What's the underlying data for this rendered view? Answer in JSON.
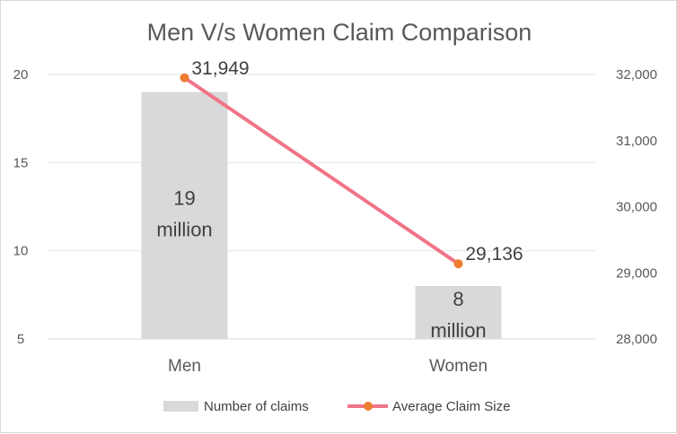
{
  "chart_data": {
    "type": "bar+line",
    "title": "Men V/s Women Claim Comparison",
    "categories": [
      "Men",
      "Women"
    ],
    "series": [
      {
        "name": "Number of claims",
        "type": "bar",
        "axis": "left",
        "values": [
          19,
          8
        ],
        "labels": [
          [
            "19",
            "million"
          ],
          [
            "8",
            "million"
          ]
        ],
        "color": "#d9d9d9"
      },
      {
        "name": "Average Claim Size",
        "type": "line",
        "axis": "right",
        "values": [
          31949,
          29136
        ],
        "labels": [
          "31,949",
          "29,136"
        ],
        "color": "#f07487",
        "marker_color": "#ed7d31"
      }
    ],
    "y_left": {
      "range": [
        5,
        20
      ],
      "ticks": [
        "5",
        "10",
        "15",
        "20"
      ]
    },
    "y_right": {
      "range": [
        28000,
        32000
      ],
      "ticks": [
        "28,000",
        "29,000",
        "30,000",
        "31,000",
        "32,000"
      ]
    },
    "grid": true,
    "legend": "bottom"
  }
}
